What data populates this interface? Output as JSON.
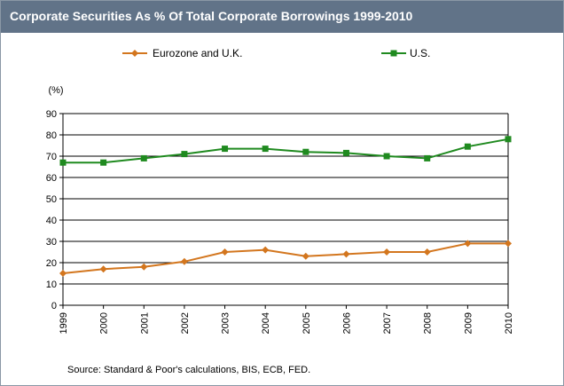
{
  "header": {
    "title": "Corporate Securities As % Of Total Corporate Borrowings 1999-2010"
  },
  "footer": {
    "source": "Source: Standard & Poor's calculations, BIS, ECB, FED."
  },
  "colors": {
    "header_bg": "#617388",
    "eurozone": "#d3761e",
    "us": "#1f8a1f",
    "grid": "#000000"
  },
  "chart_data": {
    "type": "line",
    "title": "Corporate Securities As % Of Total Corporate Borrowings 1999-2010",
    "ylabel": "(%)",
    "xlabel": "",
    "ylim": [
      0,
      90
    ],
    "yticks": [
      0,
      10,
      20,
      30,
      40,
      50,
      60,
      70,
      80,
      90
    ],
    "grid": true,
    "legend_position": "top",
    "categories": [
      "1999",
      "2000",
      "2001",
      "2002",
      "2003",
      "2004",
      "2005",
      "2006",
      "2007",
      "2008",
      "2009",
      "2010"
    ],
    "series": [
      {
        "name": "Eurozone and U.K.",
        "marker": "diamond",
        "values": [
          15,
          17,
          18,
          20.5,
          25,
          26,
          23,
          24,
          25,
          25,
          29,
          29
        ]
      },
      {
        "name": "U.S.",
        "marker": "square",
        "values": [
          67,
          67,
          69,
          71,
          73.5,
          73.5,
          72,
          71.5,
          70,
          69,
          74.5,
          78
        ]
      }
    ]
  }
}
